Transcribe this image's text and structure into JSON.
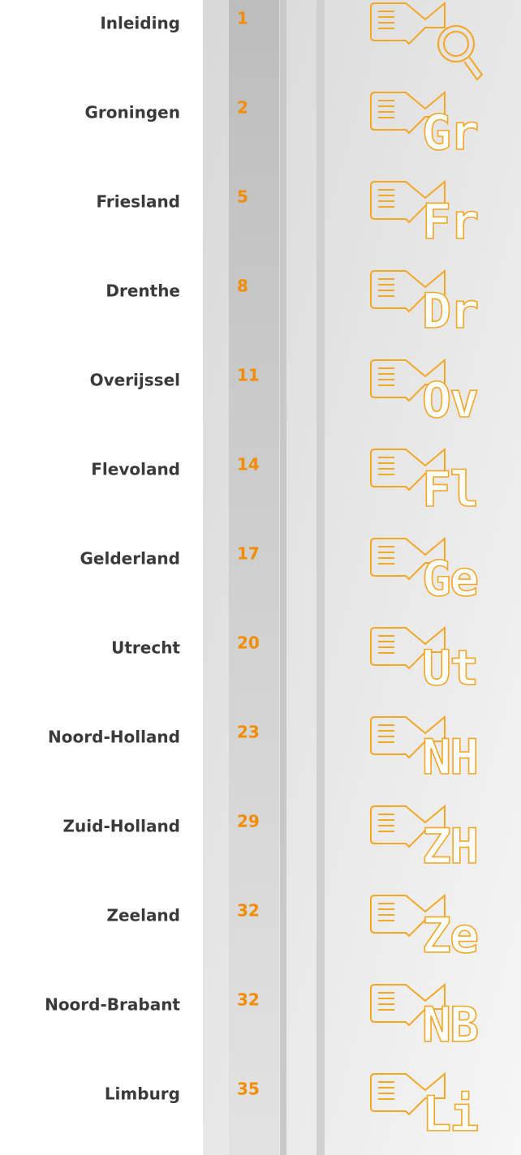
{
  "entries": [
    {
      "name": "Inleiding",
      "page": 1
    },
    {
      "name": "Groningen",
      "page": 2,
      "icon_text": "Gr"
    },
    {
      "name": "Friesland",
      "page": 5,
      "icon_text": "Fr"
    },
    {
      "name": "Drenthe",
      "page": 8,
      "icon_text": "Dr"
    },
    {
      "name": "Overijssel",
      "page": 11,
      "icon_text": "Ov"
    },
    {
      "name": "Flevoland",
      "page": 14,
      "icon_text": "Fl"
    },
    {
      "name": "Gelderland",
      "page": 17,
      "icon_text": "Ge"
    },
    {
      "name": "Utrecht",
      "page": 20,
      "icon_text": "Ut"
    },
    {
      "name": "Noord-Holland",
      "page": 23,
      "icon_text": "NH"
    },
    {
      "name": "Zuid-Holland",
      "page": 29,
      "icon_text": "ZH"
    },
    {
      "name": "Zeeland",
      "page": 32,
      "icon_text": "Ze"
    },
    {
      "name": "Noord-Brabant",
      "page": 32,
      "icon_text": "NB"
    },
    {
      "name": "Limburg",
      "page": 35,
      "icon_text": "Li"
    }
  ]
}
